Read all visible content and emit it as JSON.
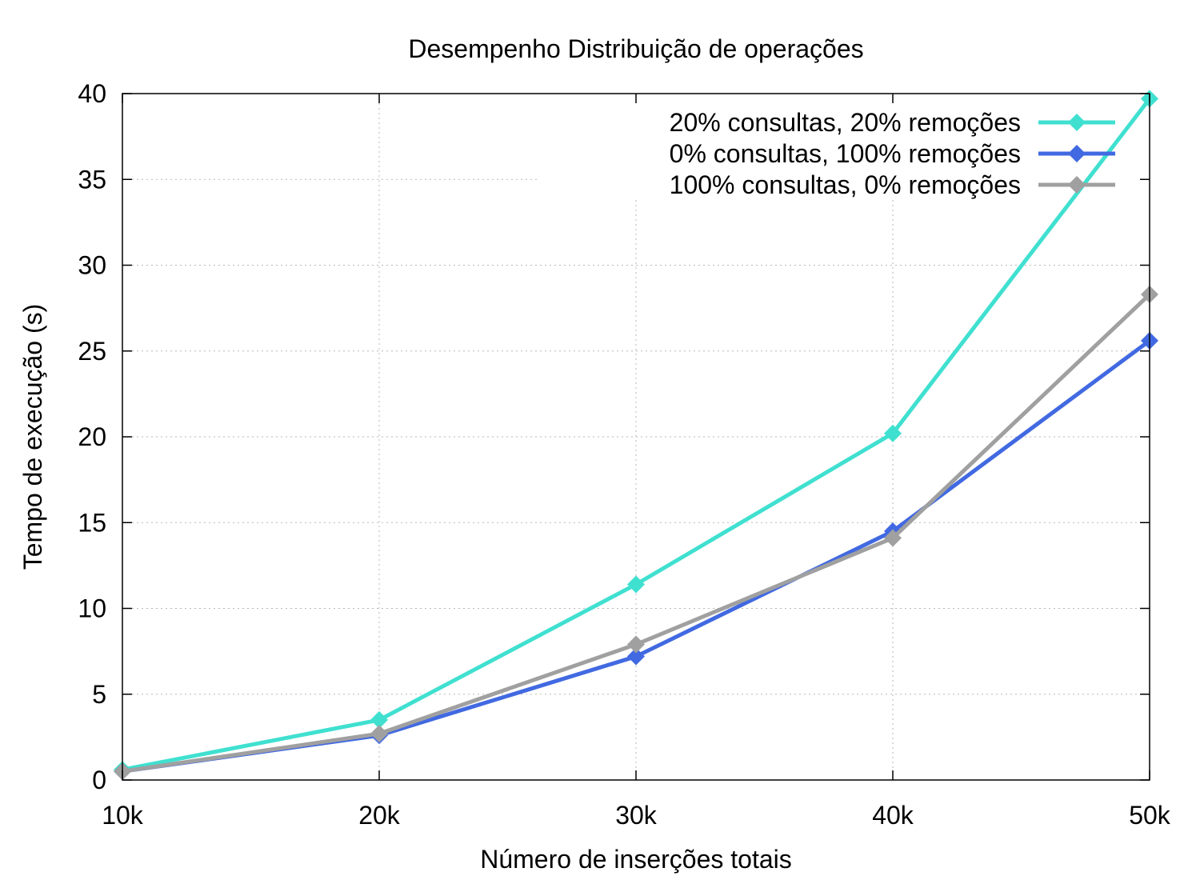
{
  "chart_data": {
    "type": "line",
    "title": "Desempenho Distribuição de operações",
    "xlabel": "Número de inserções totais",
    "ylabel": "Tempo de execução (s)",
    "x": [
      10000,
      20000,
      30000,
      40000,
      50000
    ],
    "x_tick_labels": [
      "10k",
      "20k",
      "30k",
      "40k",
      "50k"
    ],
    "xlim": [
      10000,
      50000
    ],
    "ylim": [
      0,
      40
    ],
    "y_ticks": [
      0,
      5,
      10,
      15,
      20,
      25,
      30,
      35,
      40
    ],
    "grid": true,
    "legend_position": "top-right",
    "series": [
      {
        "name": "20% consultas, 20% remoções",
        "color": "#40e0d0",
        "marker": "diamond",
        "values": [
          0.6,
          3.5,
          11.4,
          20.2,
          39.7
        ]
      },
      {
        "name": "0% consultas, 100% remoções",
        "color": "#4169e1",
        "marker": "diamond",
        "values": [
          0.5,
          2.6,
          7.2,
          14.5,
          25.6
        ]
      },
      {
        "name": "100% consultas, 0% remoções",
        "color": "#a0a0a0",
        "marker": "diamond",
        "values": [
          0.5,
          2.7,
          7.9,
          14.1,
          28.3
        ]
      }
    ]
  }
}
